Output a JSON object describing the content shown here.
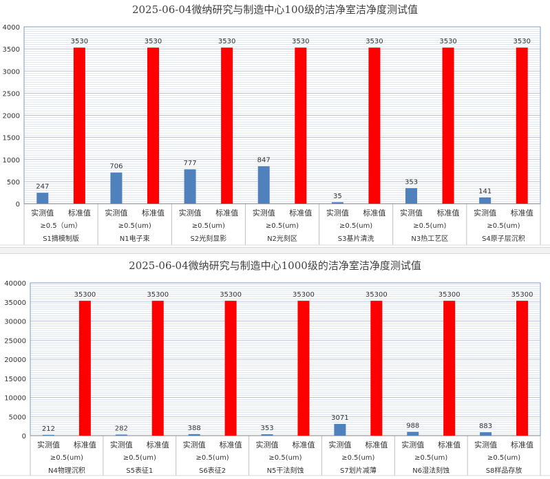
{
  "chart_data": [
    {
      "type": "bar",
      "title": "2025-06-04微纳研究与制造中心100级的洁净室洁净度测试值",
      "ylim": [
        0,
        4000
      ],
      "yticks": [
        0,
        500,
        1000,
        1500,
        2000,
        2500,
        3000,
        3500,
        4000
      ],
      "grid": true,
      "groups": [
        {
          "particle": "≥0.5（um）",
          "room": "S1摘模制版"
        },
        {
          "particle": "≥0.5(um)",
          "room": "N1电子束"
        },
        {
          "particle": "≥0.5(um)",
          "room": "S2光刻显影"
        },
        {
          "particle": "≥0.5(um)",
          "room": "N2光刻区"
        },
        {
          "particle": "≥0.5(um)",
          "room": "S3基片清洗"
        },
        {
          "particle": "≥0.5(um)",
          "room": "N3热工艺区"
        },
        {
          "particle": "≥0.5(um)",
          "room": "S4原子层沉积"
        }
      ],
      "series": [
        {
          "name": "实测值",
          "color": "#4f81bd",
          "values": [
            247,
            706,
            777,
            847,
            35,
            353,
            141
          ]
        },
        {
          "name": "标准值",
          "color": "#ff0000",
          "values": [
            3530,
            3530,
            3530,
            3530,
            3530,
            3530,
            3530
          ]
        }
      ]
    },
    {
      "type": "bar",
      "title": "2025-06-04微纳研究与制造中心1000级的洁净室洁净度测试值",
      "ylim": [
        0,
        40000
      ],
      "yticks": [
        0,
        5000,
        10000,
        15000,
        20000,
        25000,
        30000,
        35000,
        40000
      ],
      "grid": true,
      "groups": [
        {
          "particle": "≥0.5(um)",
          "room": "N4物理沉积"
        },
        {
          "particle": "≥0.5(um)",
          "room": "S5表征1"
        },
        {
          "particle": "≥0.5(um)",
          "room": "S6表征2"
        },
        {
          "particle": "≥0.5(um)",
          "room": "N5干法刻蚀"
        },
        {
          "particle": "≥0.5(um)",
          "room": "S7划片减薄"
        },
        {
          "particle": "≥0.5(um)",
          "room": "N6湿法刻蚀"
        },
        {
          "particle": "≥0.5(um)",
          "room": "S8样品存放"
        }
      ],
      "series": [
        {
          "name": "实测值",
          "color": "#4f81bd",
          "values": [
            212,
            282,
            388,
            353,
            3071,
            988,
            883
          ]
        },
        {
          "name": "标准值",
          "color": "#ff0000",
          "values": [
            35300,
            35300,
            35300,
            35300,
            35300,
            35300,
            35300
          ]
        }
      ]
    }
  ]
}
